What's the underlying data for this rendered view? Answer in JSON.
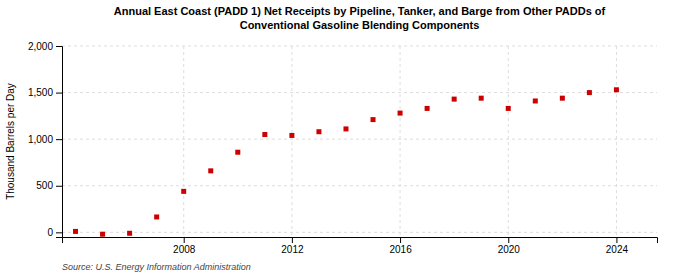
{
  "chart_data": {
    "type": "scatter",
    "title": "Annual East Coast (PADD 1) Net Receipts by Pipeline, Tanker, and Barge from Other PADDs of\nConventional Gasoline Blending Components",
    "y_label": "Thousand Barrels per Day",
    "annotations": [
      "Source: U.S. Energy Information Administration"
    ],
    "x": [
      2004,
      2005,
      2006,
      2007,
      2008,
      2009,
      2010,
      2011,
      2012,
      2013,
      2014,
      2015,
      2016,
      2017,
      2018,
      2019,
      2020,
      2021,
      2022,
      2023,
      2024
    ],
    "values": [
      10,
      -20,
      -10,
      165,
      440,
      660,
      860,
      1050,
      1040,
      1080,
      1110,
      1210,
      1280,
      1330,
      1430,
      1440,
      1330,
      1410,
      1440,
      1500,
      1530
    ],
    "color": "#cc0000",
    "marker": "square",
    "xlim": [
      2003.5,
      2025.5
    ],
    "xticks": [
      2008,
      2012,
      2016,
      2020,
      2024
    ],
    "ylim": [
      -50,
      2000
    ],
    "yticks": [
      0,
      500,
      {
        "value": 1000,
        "label": "1,000"
      },
      {
        "value": 1500,
        "label": "1,500"
      },
      {
        "value": 2000,
        "label": "2,000"
      }
    ],
    "grid": true
  }
}
